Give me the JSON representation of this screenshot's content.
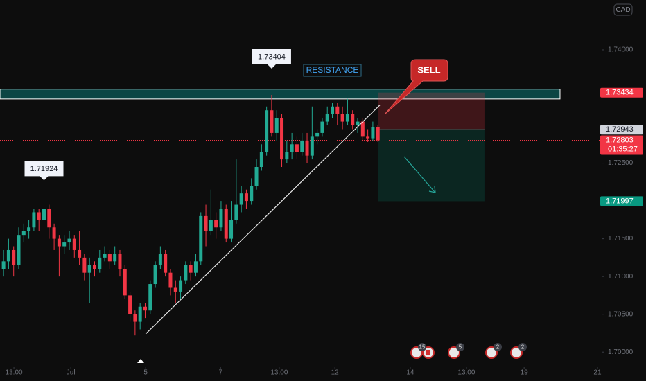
{
  "chart_data": {
    "type": "candlestick",
    "currency": "CAD",
    "open": [
      1.711,
      1.712,
      1.7135,
      1.7115,
      1.7155,
      1.716,
      1.7165,
      1.7185,
      1.7175,
      1.719,
      1.7165,
      1.715,
      1.714,
      1.7145,
      1.715,
      1.7135,
      1.7125,
      1.7105,
      1.7115,
      1.711,
      1.7125,
      1.713,
      1.712,
      1.713,
      1.711,
      1.7075,
      1.705,
      1.704,
      1.706,
      1.7055,
      1.709,
      1.7115,
      1.713,
      1.7105,
      1.7085,
      1.708,
      1.7095,
      1.7115,
      1.7105,
      1.712,
      1.718,
      1.716,
      1.7175,
      1.7165,
      1.719,
      1.715,
      1.7175,
      1.7195,
      1.721,
      1.72,
      1.722,
      1.7245,
      1.7265,
      1.732,
      1.729,
      1.731,
      1.7255,
      1.7265,
      1.7275,
      1.7265,
      1.728,
      1.726,
      1.7285,
      1.729,
      1.7305,
      1.7315,
      1.7325,
      1.7315,
      1.7305,
      1.7315,
      1.73,
      1.7305,
      1.7285,
      1.7283,
      1.7298
    ],
    "high": [
      1.7135,
      1.715,
      1.714,
      1.7165,
      1.717,
      1.7175,
      1.719,
      1.719,
      1.71924,
      1.7195,
      1.717,
      1.7155,
      1.7155,
      1.716,
      1.7155,
      1.716,
      1.713,
      1.7125,
      1.712,
      1.7135,
      1.714,
      1.7135,
      1.714,
      1.7135,
      1.7115,
      1.708,
      1.7055,
      1.7065,
      1.7065,
      1.7095,
      1.712,
      1.714,
      1.7135,
      1.711,
      1.7095,
      1.71,
      1.712,
      1.712,
      1.713,
      1.7185,
      1.7195,
      1.7215,
      1.7185,
      1.72,
      1.7195,
      1.72,
      1.7255,
      1.722,
      1.7215,
      1.723,
      1.7255,
      1.7275,
      1.7325,
      1.73404,
      1.732,
      1.7315,
      1.728,
      1.729,
      1.7285,
      1.729,
      1.729,
      1.7325,
      1.7295,
      1.731,
      1.7325,
      1.733,
      1.733,
      1.7325,
      1.7335,
      1.732,
      1.731,
      1.731,
      1.7295,
      1.7305,
      1.73
    ],
    "low": [
      1.71,
      1.711,
      1.71,
      1.711,
      1.7145,
      1.715,
      1.716,
      1.716,
      1.717,
      1.715,
      1.7135,
      1.71,
      1.713,
      1.7135,
      1.7125,
      1.7115,
      1.7095,
      1.7065,
      1.71,
      1.7105,
      1.712,
      1.711,
      1.7115,
      1.71,
      1.707,
      1.704,
      1.7022,
      1.703,
      1.7045,
      1.705,
      1.7085,
      1.711,
      1.71,
      1.7075,
      1.7065,
      1.707,
      1.709,
      1.7095,
      1.71,
      1.7115,
      1.714,
      1.7155,
      1.715,
      1.716,
      1.7145,
      1.7145,
      1.717,
      1.7185,
      1.719,
      1.7195,
      1.7215,
      1.724,
      1.726,
      1.7285,
      1.728,
      1.7245,
      1.725,
      1.7255,
      1.7255,
      1.726,
      1.725,
      1.7255,
      1.7275,
      1.7285,
      1.73,
      1.731,
      1.73,
      1.7295,
      1.73,
      1.7295,
      1.729,
      1.728,
      1.7278,
      1.728,
      1.7278
    ],
    "close": [
      1.712,
      1.7135,
      1.7115,
      1.7155,
      1.716,
      1.7165,
      1.7185,
      1.7175,
      1.719,
      1.7165,
      1.715,
      1.714,
      1.7145,
      1.715,
      1.7135,
      1.7125,
      1.7105,
      1.7115,
      1.711,
      1.7125,
      1.713,
      1.712,
      1.713,
      1.711,
      1.7075,
      1.705,
      1.704,
      1.706,
      1.7055,
      1.709,
      1.7115,
      1.713,
      1.7105,
      1.7085,
      1.708,
      1.7095,
      1.7115,
      1.7105,
      1.712,
      1.718,
      1.716,
      1.7175,
      1.7165,
      1.719,
      1.715,
      1.7175,
      1.7195,
      1.721,
      1.72,
      1.722,
      1.7245,
      1.7265,
      1.732,
      1.729,
      1.731,
      1.7255,
      1.7265,
      1.7275,
      1.7265,
      1.728,
      1.726,
      1.7285,
      1.729,
      1.7305,
      1.7315,
      1.7325,
      1.7315,
      1.7305,
      1.7315,
      1.73,
      1.7305,
      1.7285,
      1.7283,
      1.7298,
      1.72803
    ],
    "up_color": "#22ab94",
    "down_color": "#f23645",
    "xlim": [
      -0.7,
      118.5
    ],
    "xticks": [
      {
        "value": 2.05,
        "label": "13:00"
      },
      {
        "value": 13.3,
        "label": "Jul"
      },
      {
        "value": 28.1,
        "label": "5"
      },
      {
        "value": 42.9,
        "label": "7"
      },
      {
        "value": 54.5,
        "label": "13:00"
      },
      {
        "value": 65.5,
        "label": "12"
      },
      {
        "value": 80.4,
        "label": "14"
      },
      {
        "value": 91.5,
        "label": "13:00"
      },
      {
        "value": 102.9,
        "label": "19"
      },
      {
        "value": 117.4,
        "label": "21"
      }
    ],
    "ylim": [
      1.698,
      1.7466
    ],
    "yticks": [
      {
        "value": 1.74,
        "label": "1.74000"
      },
      {
        "value": 1.725,
        "label": "1.72500"
      },
      {
        "value": 1.715,
        "label": "1.71500"
      },
      {
        "value": 1.71,
        "label": "1.71000"
      },
      {
        "value": 1.705,
        "label": "1.70500"
      },
      {
        "value": 1.7,
        "label": "1.70000"
      }
    ],
    "grid": false,
    "high_labels": [
      8,
      53
    ],
    "zone": {
      "label": "RESISTANCE",
      "xlim": [
        -0.7,
        110
      ],
      "ylim": [
        1.7335,
        1.7348
      ]
    },
    "trade": {
      "label": "SELL",
      "xlim": [
        74.1,
        95.2
      ],
      "entry": 1.72943,
      "stop": 1.73434,
      "target": 1.71997
    },
    "trendline": {
      "x": [
        28.1,
        74.4
      ],
      "y": [
        1.7024,
        1.7327
      ]
    },
    "last_price": 1.72803,
    "countdown": "01:35:27",
    "event_counts": [
      15,
      5,
      2,
      2
    ]
  }
}
